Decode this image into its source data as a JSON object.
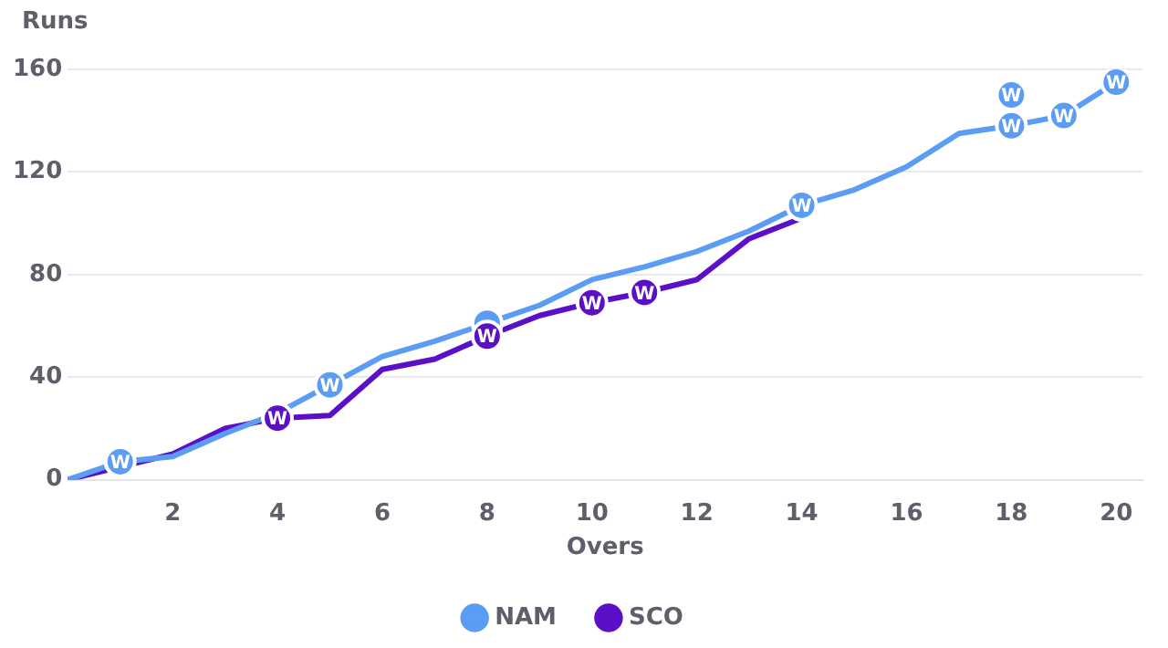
{
  "chart_data": {
    "type": "line",
    "xlabel": "Overs",
    "ylabel": "Runs",
    "xlim": [
      0,
      20.5
    ],
    "xticks": [
      2,
      4,
      6,
      8,
      10,
      12,
      14,
      16,
      18,
      20
    ],
    "ylim": [
      0,
      160
    ],
    "yticks": [
      0,
      40,
      80,
      120,
      160
    ],
    "grid": "y",
    "legend": "bottom",
    "marker": "none",
    "series": [
      {
        "name": "NAM",
        "color": "#5b9cf5",
        "x": [
          0,
          1,
          2,
          3,
          4,
          5,
          6,
          7,
          8,
          9,
          10,
          11,
          12,
          13,
          14,
          15,
          16,
          17,
          18,
          19,
          20
        ],
        "values": [
          0,
          7,
          9,
          18,
          26,
          37,
          48,
          54,
          61,
          68,
          78,
          83,
          89,
          97,
          107,
          113,
          122,
          135,
          138,
          142,
          155
        ]
      },
      {
        "name": "SCO",
        "color": "#5b0fc7",
        "x": [
          0,
          2,
          3,
          4,
          5,
          6,
          7,
          8,
          9,
          10,
          11,
          12,
          13,
          14
        ],
        "values": [
          0,
          10,
          20,
          24,
          25,
          43,
          47,
          56,
          64,
          69,
          73,
          78,
          94,
          102
        ]
      },
      {
        "type": "scatter",
        "color": "#5b9cf5",
        "marker": "circle",
        "x": [
          1,
          5,
          8,
          14,
          18,
          18,
          19,
          20
        ],
        "values": [
          7,
          37,
          61,
          107,
          138,
          150,
          142,
          155
        ],
        "value_labels": [
          "W",
          "W",
          null,
          "W",
          "W",
          "W",
          "W",
          "W"
        ]
      },
      {
        "type": "scatter",
        "color": "#5b0fc7",
        "marker": "circle",
        "x": [
          4,
          8,
          10,
          11
        ],
        "values": [
          24,
          56,
          69,
          73
        ],
        "value_labels": [
          "W",
          "W",
          "W",
          "W"
        ]
      }
    ]
  }
}
